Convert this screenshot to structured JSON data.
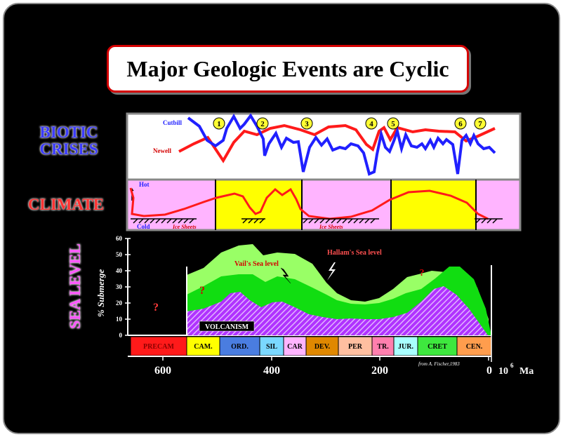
{
  "title": "Major Geologic Events are Cyclic",
  "rows": {
    "biotic": "BIOTIC CRISES",
    "climate": "CLIMATE",
    "sea_level": "SEA LEVEL"
  },
  "biotic_panel": {
    "legend_blue": "Cutbill",
    "legend_red": "Newell",
    "markers": [
      "1",
      "2",
      "3",
      "4",
      "5",
      "6",
      "7"
    ]
  },
  "climate_panel": {
    "hot": "Hot",
    "cold": "Cold",
    "ice_sheets": "Ice Sheets"
  },
  "sea_panel": {
    "ylabel": "% Submerge",
    "yticks": [
      "0",
      "10",
      "20",
      "30",
      "40",
      "50",
      "60"
    ],
    "vail_label": "Vail's Sea level",
    "hallam_label": "Hallam's Sea level",
    "volcanism_label": "VOLCANISM",
    "question": "?",
    "source": "from A. Fischer,1983"
  },
  "periods": [
    "PRECAM",
    "CAM.",
    "ORD.",
    "SIL",
    "CAR",
    "DEV.",
    "PER",
    "TR.",
    "JUR.",
    "CRET",
    "CEN."
  ],
  "period_colors": [
    "#ff1a1a",
    "#ffff00",
    "#4a7de0",
    "#7ad8ff",
    "#ffb4ff",
    "#e08800",
    "#ffbfa0",
    "#ff7fae",
    "#a8ffff",
    "#3ee83e",
    "#ff9d4d"
  ],
  "time_axis": {
    "ticks": [
      "600",
      "400",
      "200",
      "0"
    ],
    "unit": "10",
    "unit_exp": "6",
    "unit_ma": "Ma"
  },
  "colors": {
    "cutbill": "#2020ff",
    "newell": "#ff1a1a",
    "warm_band": "#ffff00",
    "cool_band": "#ffb4ff",
    "hallam_fill": "#99ff66",
    "vail_fill": "#11dd11",
    "volcanism_fill": "#b033ff"
  }
}
